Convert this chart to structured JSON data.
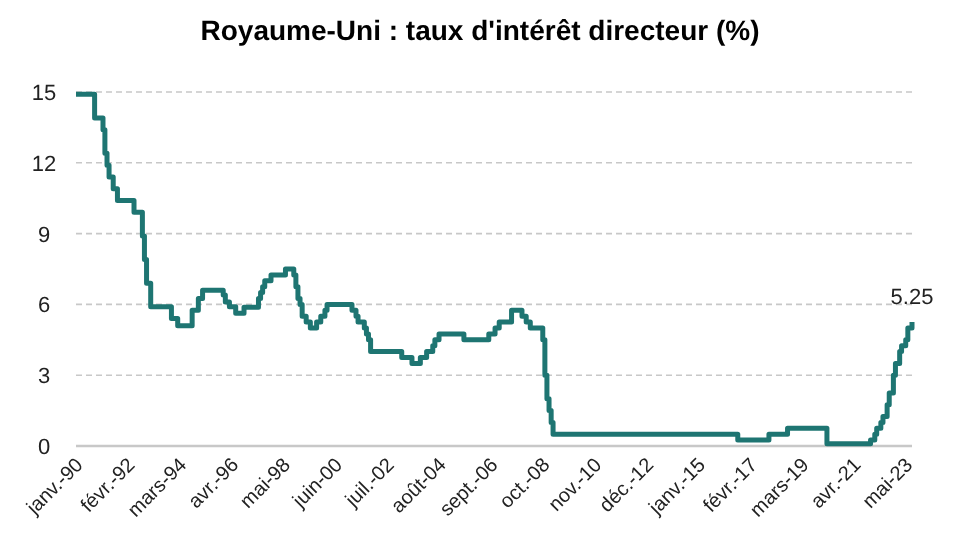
{
  "chart_data": {
    "type": "step",
    "title": "Royaume-Uni : taux d'intérêt directeur (%)",
    "x": [
      "1990-01",
      "1990-10",
      "1991-02",
      "1991-03",
      "1991-04",
      "1991-05",
      "1991-07",
      "1991-09",
      "1992-05",
      "1992-09",
      "1992-10",
      "1992-11",
      "1993-01",
      "1993-11",
      "1994-02",
      "1994-09",
      "1994-12",
      "1995-02",
      "1995-12",
      "1996-01",
      "1996-03",
      "1996-06",
      "1996-10",
      "1997-05",
      "1997-06",
      "1997-07",
      "1997-08",
      "1997-11",
      "1998-06",
      "1998-10",
      "1998-11",
      "1998-12",
      "1999-01",
      "1999-02",
      "1999-04",
      "1999-06",
      "1999-09",
      "1999-11",
      "2000-01",
      "2000-02",
      "2001-02",
      "2001-04",
      "2001-05",
      "2001-08",
      "2001-09",
      "2001-10",
      "2001-11",
      "2003-02",
      "2003-07",
      "2003-11",
      "2004-02",
      "2004-05",
      "2004-06",
      "2004-08",
      "2005-08",
      "2006-08",
      "2006-11",
      "2007-01",
      "2007-07",
      "2007-12",
      "2008-02",
      "2008-04",
      "2008-10",
      "2008-11",
      "2008-12",
      "2009-01",
      "2009-02",
      "2009-03",
      "2016-08",
      "2017-11",
      "2018-08",
      "2020-03",
      "2021-12",
      "2022-02",
      "2022-03",
      "2022-05",
      "2022-06",
      "2022-08",
      "2022-09",
      "2022-11",
      "2022-12",
      "2023-02",
      "2023-03",
      "2023-05",
      "2023-06",
      "2023-08"
    ],
    "series": [
      {
        "color": "#1e7572",
        "values": [
          14.9,
          13.9,
          13.4,
          12.4,
          11.9,
          11.4,
          10.9,
          10.4,
          9.9,
          8.9,
          7.9,
          6.9,
          5.9,
          5.4,
          5.1,
          5.75,
          6.25,
          6.6,
          6.4,
          6.1,
          5.9,
          5.63,
          5.88,
          6.25,
          6.5,
          6.75,
          7,
          7.25,
          7.5,
          7.25,
          6.75,
          6.25,
          6,
          5.5,
          5.25,
          5,
          5.25,
          5.5,
          5.75,
          6,
          5.75,
          5.5,
          5.25,
          5,
          4.75,
          4.5,
          4,
          3.75,
          3.5,
          3.75,
          4,
          4.25,
          4.5,
          4.75,
          4.5,
          4.75,
          5,
          5.25,
          5.75,
          5.5,
          5.25,
          5,
          4.5,
          3,
          2,
          1.5,
          1,
          0.5,
          0.25,
          0.5,
          0.75,
          0.1,
          0.25,
          0.5,
          0.75,
          1,
          1.25,
          1.75,
          2.25,
          3,
          3.5,
          4,
          4.25,
          4.5,
          5,
          5.25
        ],
        "value_labels": [
          null,
          null,
          null,
          null,
          null,
          null,
          null,
          null,
          null,
          null,
          null,
          null,
          null,
          null,
          null,
          null,
          null,
          null,
          null,
          null,
          null,
          null,
          null,
          null,
          null,
          null,
          null,
          null,
          null,
          null,
          null,
          null,
          null,
          null,
          null,
          null,
          null,
          null,
          null,
          null,
          null,
          null,
          null,
          null,
          null,
          null,
          null,
          null,
          null,
          null,
          null,
          null,
          null,
          null,
          null,
          null,
          null,
          null,
          null,
          null,
          null,
          null,
          null,
          null,
          null,
          null,
          null,
          null,
          null,
          null,
          null,
          null,
          null,
          null,
          null,
          null,
          null,
          null,
          null,
          null,
          null,
          null,
          null,
          null,
          null,
          "5.25"
        ]
      }
    ],
    "xlim": [
      "1990-01",
      "2023-08"
    ],
    "xticks": [
      {
        "value": "1990-01",
        "label": "janv.-90"
      },
      {
        "value": "1992-02",
        "label": "févr.-92"
      },
      {
        "value": "1994-03",
        "label": "mars-94"
      },
      {
        "value": "1996-04",
        "label": "avr.-96"
      },
      {
        "value": "1998-05",
        "label": "mai-98"
      },
      {
        "value": "2000-06",
        "label": "juin-00"
      },
      {
        "value": "2002-07",
        "label": "juil.-02"
      },
      {
        "value": "2004-08",
        "label": "août-04"
      },
      {
        "value": "2006-09",
        "label": "sept.-06"
      },
      {
        "value": "2008-10",
        "label": "oct.-08"
      },
      {
        "value": "2010-11",
        "label": "nov.-10"
      },
      {
        "value": "2012-12",
        "label": "déc.-12"
      },
      {
        "value": "2015-01",
        "label": "janv.-15"
      },
      {
        "value": "2017-02",
        "label": "févr.-17"
      },
      {
        "value": "2019-03",
        "label": "mars-19"
      },
      {
        "value": "2021-04",
        "label": "avr.-21"
      },
      {
        "value": "2023-05",
        "label": "mai-23"
      }
    ],
    "ylim": [
      0,
      15
    ],
    "yticks": [
      0,
      3,
      6,
      9,
      12,
      15
    ],
    "grid": "y",
    "line_style": "solid",
    "marker": "none"
  }
}
